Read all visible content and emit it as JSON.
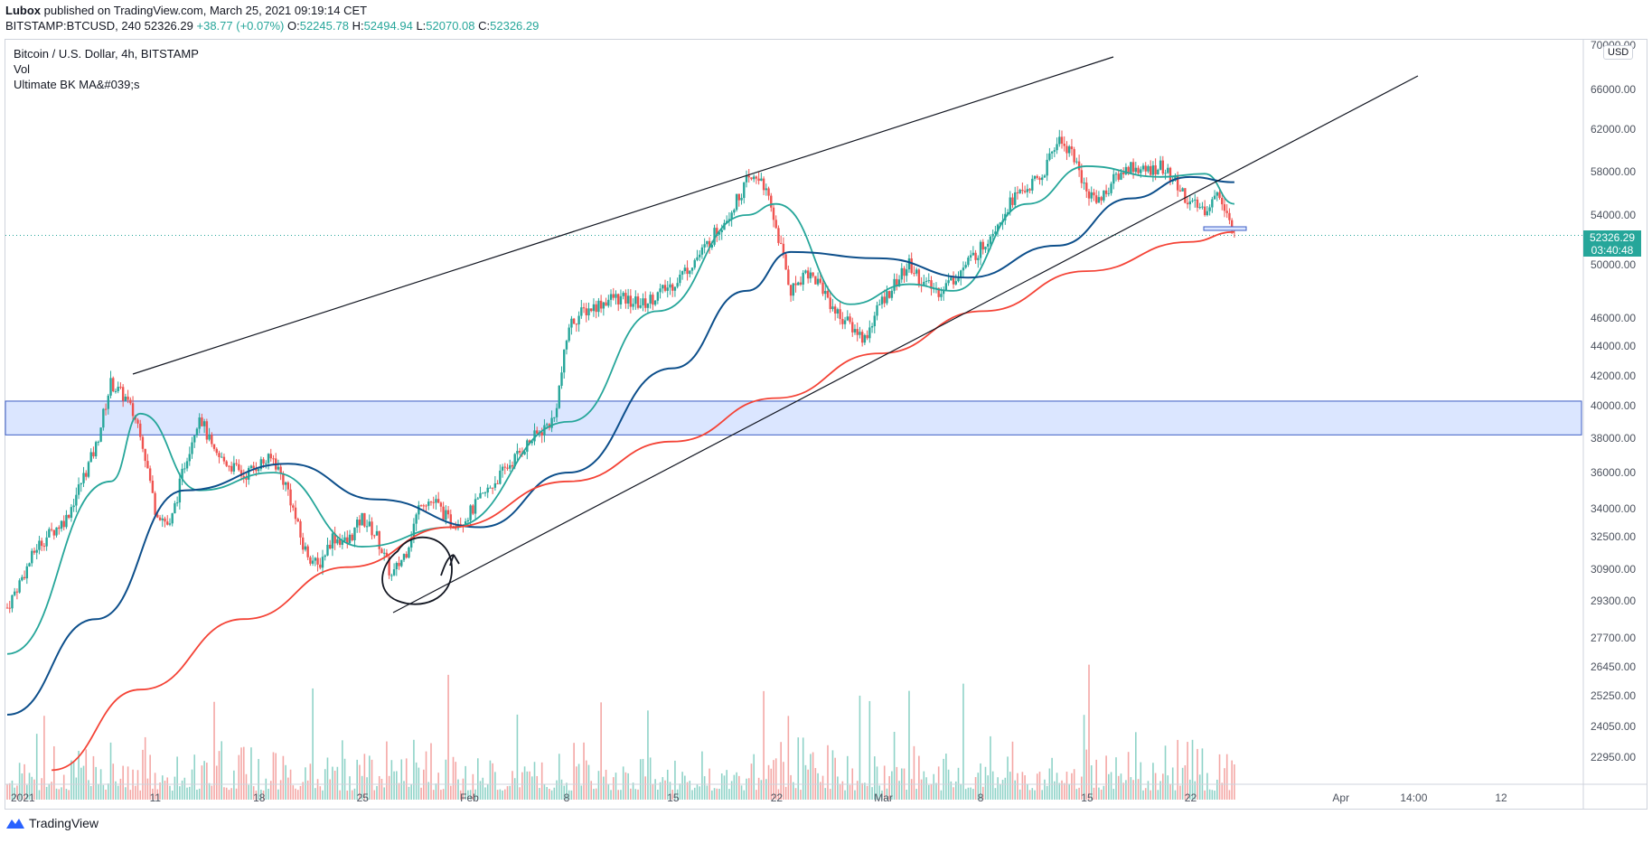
{
  "header": {
    "author": "Lubox",
    "published": "published on TradingView.com, March 25, 2021 09:19:14 CET",
    "symbol": "BITSTAMP:BTCUSD, 240",
    "last": "52326.29",
    "change": "+38.77 (+0.07%)",
    "o_label": "O:",
    "o_value": "52245.78",
    "h_label": "H:",
    "h_value": "52494.94",
    "l_label": "L:",
    "l_value": "52070.08",
    "c_label": "C:",
    "c_value": "52326.29"
  },
  "legend": {
    "title": "Bitcoin / U.S. Dollar, 4h, BITSTAMP",
    "vol": "Vol",
    "indicator": "Ultimate BK MA&#039;s"
  },
  "price_tag": {
    "price": "52326.29",
    "countdown": "03:40:48"
  },
  "currency_button": "USD",
  "footer": {
    "brand": "TradingView"
  },
  "colors": {
    "up": "#26a69a",
    "down": "#ef5350",
    "ma_fast": "#26a69a",
    "ma_mid": "#0d4f8b",
    "ma_slow": "#f44336",
    "zone": "#dbe6ff",
    "line": "#131722"
  },
  "chart_data": {
    "type": "candlestick",
    "title": "Bitcoin / U.S. Dollar, 4h, BITSTAMP",
    "y_ticks": [
      70000,
      66000,
      62000,
      58000,
      54000,
      50000,
      46000,
      44000,
      42000,
      40000,
      38000,
      36000,
      34000,
      32500,
      30900,
      29300,
      27700,
      26450,
      25250,
      24050,
      22950
    ],
    "y_tick_labels": [
      "70000.00",
      "66000.00",
      "62000.00",
      "58000.00",
      "54000.00",
      "50000.00",
      "46000.00",
      "44000.00",
      "42000.00",
      "40000.00",
      "38000.00",
      "36000.00",
      "34000.00",
      "32500.00",
      "30900.00",
      "29300.00",
      "27700.00",
      "26450.00",
      "25250.00",
      "24050.00",
      "22950.00"
    ],
    "x_ticks": [
      "2021",
      "11",
      "18",
      "25",
      "Feb",
      "8",
      "15",
      "22",
      "Mar",
      "8",
      "15",
      "22",
      "Apr",
      "14:00",
      "12"
    ],
    "x_tick_dates": [
      "2021-01-01",
      "2021-01-11",
      "2021-01-18",
      "2021-01-25",
      "2021-02-01",
      "2021-02-08",
      "2021-02-15",
      "2021-02-22",
      "2021-03-01",
      "2021-03-08",
      "2021-03-15",
      "2021-03-22",
      "2021-04-01",
      "2021-04-05T14:00",
      "2021-04-12"
    ],
    "y_scale": "log",
    "last_price": 52326.29,
    "resistance_zone": [
      38200,
      40300
    ],
    "path": [
      [
        "2021-01-01",
        29000
      ],
      [
        "2021-01-03",
        32000
      ],
      [
        "2021-01-05",
        33500
      ],
      [
        "2021-01-07",
        37500
      ],
      [
        "2021-01-08",
        41500
      ],
      [
        "2021-01-09",
        40500
      ],
      [
        "2021-01-10",
        38500
      ],
      [
        "2021-01-11",
        34000
      ],
      [
        "2021-01-12",
        33000
      ],
      [
        "2021-01-13",
        36500
      ],
      [
        "2021-01-14",
        39500
      ],
      [
        "2021-01-15",
        37000
      ],
      [
        "2021-01-16",
        36500
      ],
      [
        "2021-01-17",
        35800
      ],
      [
        "2021-01-18",
        36500
      ],
      [
        "2021-01-19",
        36800
      ],
      [
        "2021-01-20",
        35000
      ],
      [
        "2021-01-21",
        32000
      ],
      [
        "2021-01-22",
        31000
      ],
      [
        "2021-01-23",
        32500
      ],
      [
        "2021-01-24",
        32200
      ],
      [
        "2021-01-25",
        33500
      ],
      [
        "2021-01-26",
        32500
      ],
      [
        "2021-01-27",
        30500
      ],
      [
        "2021-01-28",
        31800
      ],
      [
        "2021-01-29",
        34500
      ],
      [
        "2021-01-30",
        34300
      ],
      [
        "2021-01-31",
        33200
      ],
      [
        "2021-02-01",
        33500
      ],
      [
        "2021-02-03",
        35500
      ],
      [
        "2021-02-05",
        37500
      ],
      [
        "2021-02-07",
        39200
      ],
      [
        "2021-02-08",
        45500
      ],
      [
        "2021-02-09",
        46500
      ],
      [
        "2021-02-11",
        47500
      ],
      [
        "2021-02-13",
        47000
      ],
      [
        "2021-02-15",
        48500
      ],
      [
        "2021-02-17",
        51000
      ],
      [
        "2021-02-19",
        54500
      ],
      [
        "2021-02-20",
        57000
      ],
      [
        "2021-02-21",
        57500
      ],
      [
        "2021-02-22",
        53000
      ],
      [
        "2021-02-23",
        48000
      ],
      [
        "2021-02-24",
        49500
      ],
      [
        "2021-02-25",
        48500
      ],
      [
        "2021-02-26",
        46500
      ],
      [
        "2021-02-28",
        44500
      ],
      [
        "2021-03-01",
        47000
      ],
      [
        "2021-03-03",
        50000
      ],
      [
        "2021-03-04",
        48500
      ],
      [
        "2021-03-05",
        48000
      ],
      [
        "2021-03-06",
        48900
      ],
      [
        "2021-03-08",
        51500
      ],
      [
        "2021-03-10",
        55500
      ],
      [
        "2021-03-12",
        57500
      ],
      [
        "2021-03-13",
        61000
      ],
      [
        "2021-03-14",
        60000
      ],
      [
        "2021-03-15",
        56000
      ],
      [
        "2021-03-16",
        55500
      ],
      [
        "2021-03-17",
        57500
      ],
      [
        "2021-03-18",
        58500
      ],
      [
        "2021-03-19",
        58000
      ],
      [
        "2021-03-20",
        58500
      ],
      [
        "2021-03-21",
        57000
      ],
      [
        "2021-03-22",
        55000
      ],
      [
        "2021-03-23",
        54500
      ],
      [
        "2021-03-24",
        56000
      ],
      [
        "2021-03-25",
        52326.29
      ]
    ],
    "moving_averages": [
      {
        "color": "#26a69a",
        "points": [
          [
            "2021-01-01",
            27000
          ],
          [
            "2021-01-08",
            35500
          ],
          [
            "2021-01-10",
            39500
          ],
          [
            "2021-01-14",
            35000
          ],
          [
            "2021-01-19",
            36000
          ],
          [
            "2021-01-25",
            32000
          ],
          [
            "2021-01-31",
            33000
          ],
          [
            "2021-02-08",
            39000
          ],
          [
            "2021-02-14",
            46500
          ],
          [
            "2021-02-20",
            54000
          ],
          [
            "2021-02-22",
            55000
          ],
          [
            "2021-02-27",
            47000
          ],
          [
            "2021-03-03",
            48500
          ],
          [
            "2021-03-06",
            48000
          ],
          [
            "2021-03-11",
            55000
          ],
          [
            "2021-03-15",
            58500
          ],
          [
            "2021-03-20",
            57500
          ],
          [
            "2021-03-23",
            57800
          ],
          [
            "2021-03-25",
            55000
          ]
        ]
      },
      {
        "color": "#0d4f8b",
        "points": [
          [
            "2021-01-01",
            24500
          ],
          [
            "2021-01-07",
            28500
          ],
          [
            "2021-01-13",
            35000
          ],
          [
            "2021-01-20",
            36500
          ],
          [
            "2021-01-26",
            34500
          ],
          [
            "2021-02-02",
            33000
          ],
          [
            "2021-02-08",
            36000
          ],
          [
            "2021-02-15",
            42500
          ],
          [
            "2021-02-20",
            48000
          ],
          [
            "2021-02-23",
            51000
          ],
          [
            "2021-03-01",
            50500
          ],
          [
            "2021-03-07",
            49000
          ],
          [
            "2021-03-13",
            51500
          ],
          [
            "2021-03-18",
            55500
          ],
          [
            "2021-03-22",
            57500
          ],
          [
            "2021-03-25",
            57000
          ]
        ]
      },
      {
        "color": "#f44336",
        "points": [
          [
            "2021-01-04",
            22500
          ],
          [
            "2021-01-10",
            25500
          ],
          [
            "2021-01-17",
            28500
          ],
          [
            "2021-01-24",
            31000
          ],
          [
            "2021-01-31",
            33000
          ],
          [
            "2021-02-08",
            35500
          ],
          [
            "2021-02-15",
            37800
          ],
          [
            "2021-02-22",
            40500
          ],
          [
            "2021-03-01",
            43500
          ],
          [
            "2021-03-08",
            46500
          ],
          [
            "2021-03-15",
            49500
          ],
          [
            "2021-03-22",
            51800
          ],
          [
            "2021-03-25",
            52600
          ]
        ]
      }
    ]
  }
}
